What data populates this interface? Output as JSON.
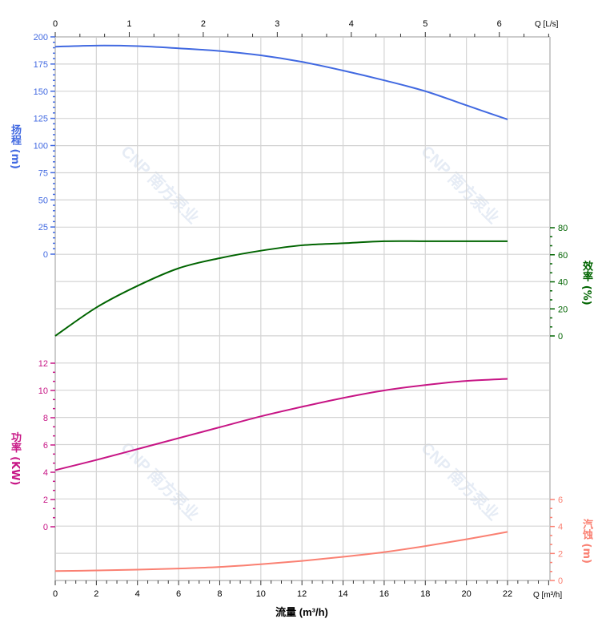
{
  "watermark": "CNP 南方泵业",
  "colors": {
    "head": "#4169e1",
    "efficiency": "#006400",
    "power": "#c71585",
    "npsh": "#fa8072",
    "grid": "#d4d4d4",
    "axis": "#000000",
    "top_axis_label": "#d2691e"
  },
  "chart_data": {
    "type": "line",
    "xlabel": "流量 (m³/h)",
    "x_unit_label": "Q [m³/h]",
    "xlim": [
      0,
      24
    ],
    "x_ticks": [
      0,
      2,
      4,
      6,
      8,
      10,
      12,
      14,
      16,
      18,
      20,
      22
    ],
    "top_axis": {
      "unit_label": "Q [L/s]",
      "ticks": [
        0,
        1,
        2,
        3,
        4,
        5,
        6
      ]
    },
    "grid": true,
    "x": [
      0,
      2,
      4,
      6,
      8,
      10,
      12,
      14,
      16,
      18,
      20,
      22
    ],
    "series": [
      {
        "key": "head",
        "axis_label": "扬程 (m)",
        "axis_side": "left",
        "ylim": [
          0,
          200
        ],
        "ticks": [
          0,
          25,
          50,
          75,
          100,
          125,
          150,
          175,
          200
        ],
        "values": [
          191,
          192,
          191.5,
          189.5,
          187,
          183,
          177,
          169,
          160,
          150,
          137,
          124
        ]
      },
      {
        "key": "efficiency",
        "axis_label": "效率 (%)",
        "axis_side": "right",
        "ylim": [
          0,
          80
        ],
        "ticks": [
          0,
          20,
          40,
          60,
          80
        ],
        "values": [
          0,
          21,
          37,
          50,
          57.5,
          63,
          67,
          68.5,
          70,
          70,
          70,
          70
        ]
      },
      {
        "key": "power",
        "axis_label": "功率 (KW)",
        "axis_side": "left",
        "ylim": [
          0,
          12
        ],
        "ticks": [
          0,
          2,
          4,
          6,
          8,
          10,
          12
        ],
        "values": [
          4.15,
          4.9,
          5.7,
          6.5,
          7.3,
          8.1,
          8.8,
          9.45,
          10.0,
          10.4,
          10.7,
          10.85
        ]
      },
      {
        "key": "npsh",
        "axis_label": "汽蚀 (m)",
        "axis_side": "right",
        "ylim": [
          0,
          6
        ],
        "ticks": [
          0,
          2,
          4,
          6
        ],
        "values": [
          0.7,
          0.74,
          0.8,
          0.88,
          1.0,
          1.2,
          1.45,
          1.75,
          2.1,
          2.55,
          3.05,
          3.6
        ]
      }
    ]
  }
}
